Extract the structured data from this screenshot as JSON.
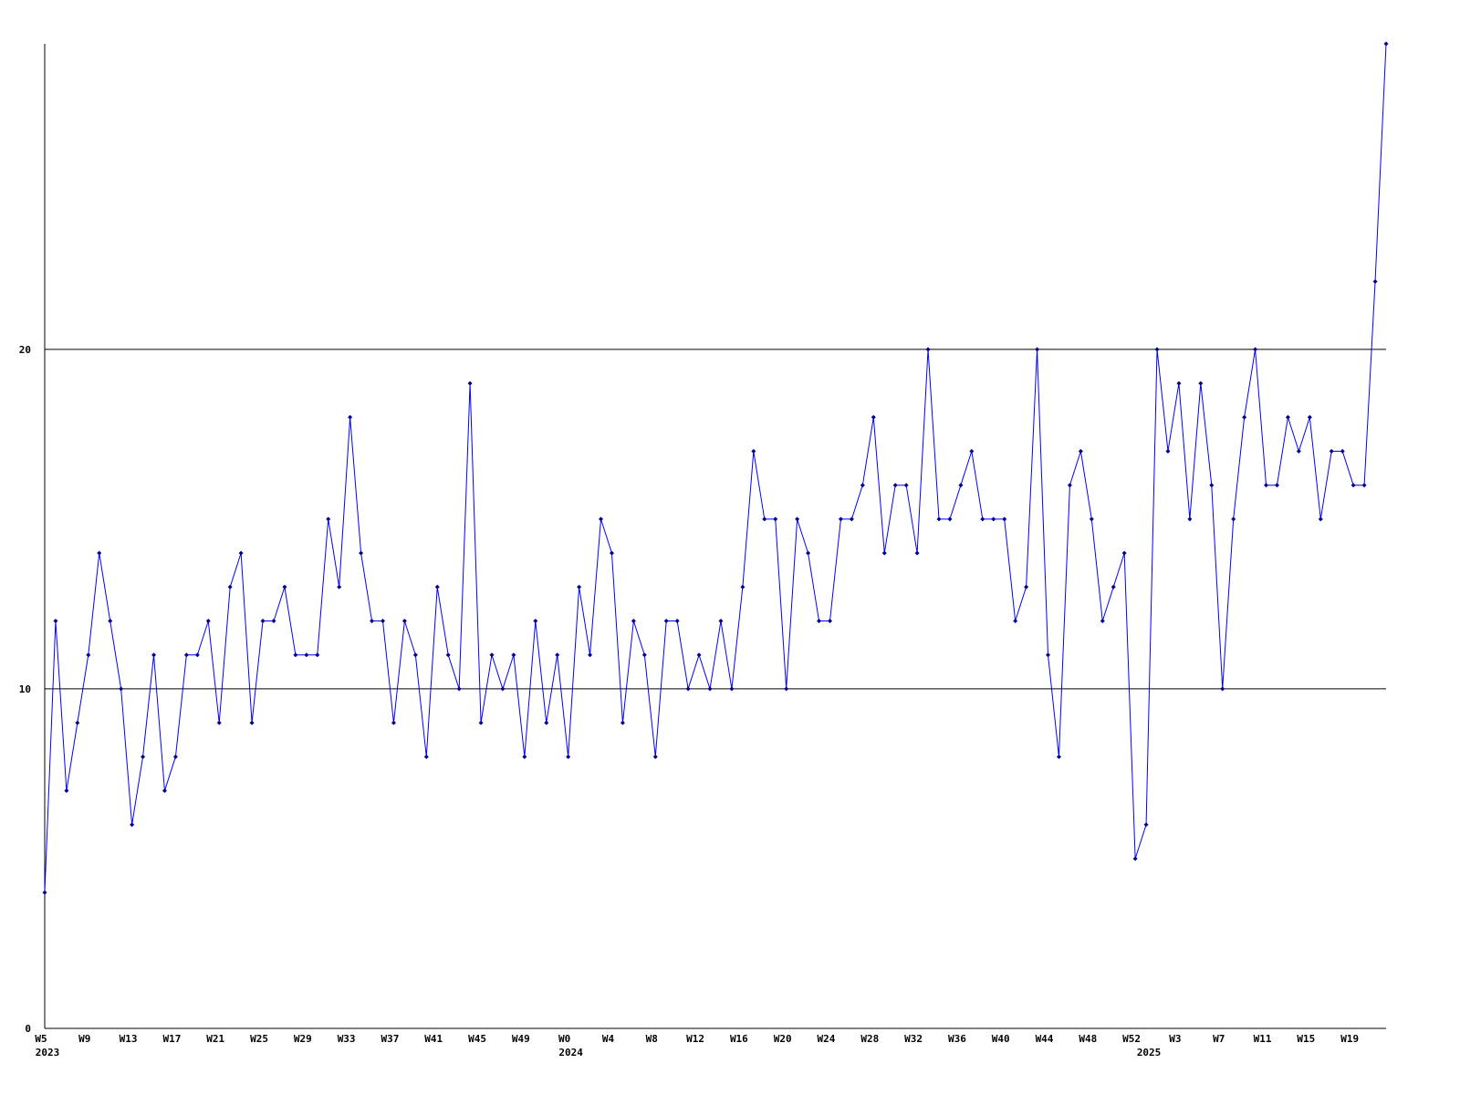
{
  "chart_data": {
    "type": "line",
    "categories": [
      "W5",
      null,
      null,
      null,
      "W9",
      null,
      null,
      null,
      "W13",
      null,
      null,
      null,
      "W17",
      null,
      null,
      null,
      "W21",
      null,
      null,
      null,
      "W25",
      null,
      null,
      null,
      "W29",
      null,
      null,
      null,
      "W33",
      null,
      null,
      null,
      "W37",
      null,
      null,
      null,
      "W41",
      null,
      null,
      null,
      "W45",
      null,
      null,
      null,
      "W49",
      null,
      null,
      null,
      "W0",
      null,
      null,
      null,
      "W4",
      null,
      null,
      null,
      "W8",
      null,
      null,
      null,
      "W12",
      null,
      null,
      null,
      "W16",
      null,
      null,
      null,
      "W20",
      null,
      null,
      null,
      "W24",
      null,
      null,
      null,
      "W28",
      null,
      null,
      null,
      "W32",
      null,
      null,
      null,
      "W36",
      null,
      null,
      null,
      "W40",
      null,
      null,
      null,
      "W44",
      null,
      null,
      null,
      "W48",
      null,
      null,
      null,
      "W52",
      null,
      null,
      null,
      "W3",
      null,
      null,
      null,
      "W7",
      null,
      null,
      null,
      "W11",
      null,
      null,
      null,
      "W15",
      null,
      null,
      null,
      "W19",
      null,
      null,
      null
    ],
    "year_labels": [
      {
        "index": 0,
        "label": "2023"
      },
      {
        "index": 48,
        "label": "2024"
      },
      {
        "index": 101,
        "label": "2025"
      }
    ],
    "series": [
      {
        "color": "#0000ff",
        "marker_color": "#00008b",
        "values": [
          4,
          12,
          7,
          9,
          11,
          14,
          12,
          10,
          6,
          8,
          11,
          7,
          8,
          11,
          11,
          12,
          9,
          13,
          14,
          9,
          12,
          12,
          13,
          11,
          11,
          11,
          15,
          13,
          18,
          14,
          12,
          12,
          9,
          12,
          11,
          8,
          13,
          11,
          10,
          19,
          9,
          11,
          10,
          11,
          8,
          12,
          9,
          11,
          8,
          13,
          11,
          15,
          14,
          9,
          12,
          11,
          8,
          12,
          12,
          10,
          11,
          10,
          12,
          10,
          13,
          17,
          15,
          15,
          10,
          15,
          14,
          12,
          12,
          15,
          15,
          16,
          18,
          14,
          16,
          16,
          14,
          20,
          15,
          15,
          16,
          17,
          15,
          15,
          15,
          12,
          13,
          20,
          11,
          8,
          16,
          17,
          15,
          12,
          13,
          14,
          5,
          6,
          20,
          17,
          19,
          15,
          19,
          16,
          10,
          15,
          18,
          20,
          16,
          16,
          18,
          17,
          18,
          15,
          17,
          17,
          16,
          16,
          22,
          29
        ]
      }
    ],
    "ylim": [
      0,
      29
    ],
    "yticks": [
      0,
      10,
      20
    ],
    "grid": true
  }
}
